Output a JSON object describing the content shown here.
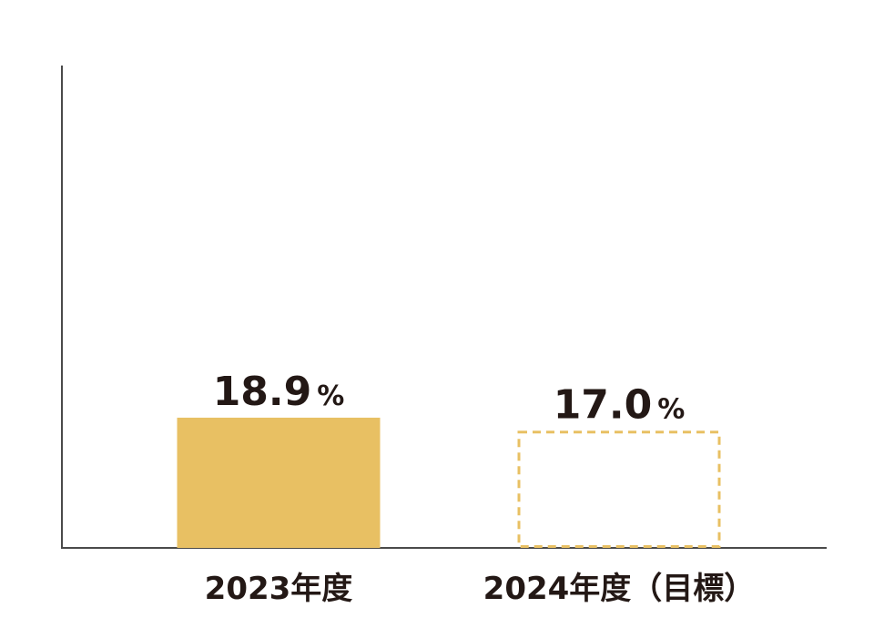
{
  "chart_data": {
    "type": "bar",
    "categories": [
      "2023年度",
      "2024年度（目標）"
    ],
    "values": [
      18.9,
      17.0
    ],
    "value_labels": [
      "18.9",
      "17.0"
    ],
    "unit": "%",
    "bar_styles": [
      "solid",
      "dashed"
    ],
    "bar_color": "#E8C063",
    "axis_color": "#4a4a4a",
    "text_color": "#231815",
    "ylim": [
      0,
      70
    ],
    "grid": false,
    "title": "",
    "xlabel": "",
    "ylabel": ""
  }
}
